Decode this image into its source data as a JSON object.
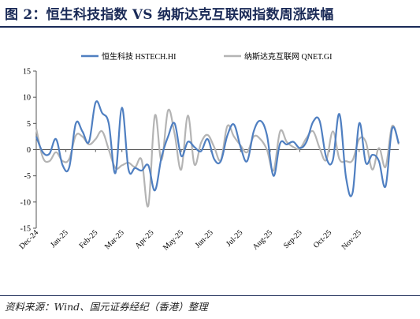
{
  "page": {
    "title": "图 2：恒生科技指数 VS 纳斯达克互联网指数周涨跌幅",
    "source": "资料来源：Wind、国元证券经纪（香港）整理"
  },
  "colors": {
    "hstech": "#4f7fc1",
    "qnet": "#b4b4b4",
    "title": "#1a2a57"
  },
  "chart_data": {
    "type": "line",
    "title": "",
    "xlabel": "",
    "ylabel": "",
    "ylim": [
      -15,
      15
    ],
    "yticks": [
      -15,
      -10,
      -5,
      0,
      5,
      10,
      15
    ],
    "grid": false,
    "legend": "top",
    "x_tick_labels": [
      "Dec-24",
      "Jan-25",
      "Feb-25",
      "Mar-25",
      "Apr-25",
      "May-25",
      "Jun-25",
      "Jul-25",
      "Aug-25",
      "Sep-25",
      "Oct-25",
      "Nov-25"
    ],
    "x_tick_positions": [
      0,
      4.5,
      9,
      13,
      17.5,
      22,
      26.5,
      31,
      35.5,
      40,
      44.5,
      49
    ],
    "series": [
      {
        "name": "恒生科技 HSTECH.HI",
        "color": "#4f7fc1",
        "values": [
          2.5,
          -0.5,
          -0.8,
          2.0,
          -3.0,
          -3.4,
          5.0,
          3.5,
          1.5,
          9.0,
          7.0,
          5.0,
          -4.5,
          8.0,
          -3.8,
          -3.5,
          -4.0,
          -3.0,
          -7.8,
          -1.5,
          2.5,
          5.0,
          -1.2,
          1.5,
          0.5,
          -0.3,
          2.0,
          -1.8,
          -2.2,
          2.7,
          4.8,
          0.5,
          -2.2,
          3.5,
          5.5,
          2.8,
          -5.0,
          1.2,
          1.0,
          1.5,
          0.3,
          1.5,
          5.3,
          5.5,
          -1.5,
          -2.0,
          6.8,
          -5.3,
          -8.2,
          5.0,
          -2.5,
          -1.0,
          -2.2,
          -7.0,
          4.0,
          1.2
        ]
      },
      {
        "name": "纳斯达克互联网 QNET.GI",
        "color": "#b4b4b4",
        "values": [
          4.0,
          -1.5,
          -2.2,
          -0.5,
          -2.2,
          -1.8,
          2.7,
          2.5,
          1.0,
          2.0,
          3.5,
          0.0,
          -3.5,
          -3.0,
          -2.5,
          -3.3,
          -2.0,
          -10.7,
          6.5,
          -2.0,
          7.5,
          3.0,
          -3.8,
          6.5,
          -2.8,
          1.3,
          2.8,
          0.5,
          -2.0,
          4.5,
          2.5,
          0.8,
          -0.5,
          2.5,
          2.0,
          0.0,
          -4.0,
          3.5,
          1.5,
          0.5,
          0.2,
          2.2,
          3.5,
          0.3,
          -2.0,
          3.5,
          -1.8,
          -2.2,
          -2.0,
          2.0,
          1.5,
          -3.8,
          0.3,
          -3.3,
          4.5,
          1.0
        ]
      }
    ]
  }
}
